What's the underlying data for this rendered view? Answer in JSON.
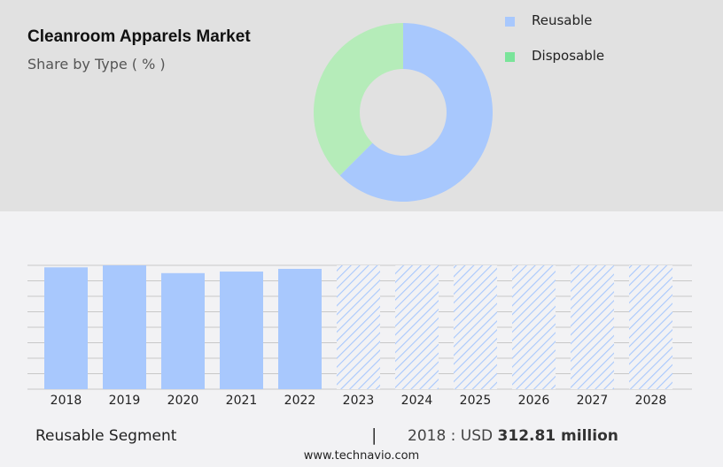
{
  "header": {
    "title": "Cleanroom Apparels Market",
    "subtitle": "Share by Type ( % )"
  },
  "colors": {
    "top_panel_bg": "#e1e1e1",
    "page_bg": "#f2f2f4",
    "reusable": "#a8c8fd",
    "disposable_slice": "#b5ecb9",
    "disposable_legend": "#7ae49a",
    "gridline": "#c8c8c8"
  },
  "legend": [
    {
      "label": "Reusable",
      "color": "#a8c8fd"
    },
    {
      "label": "Disposable",
      "color": "#7ae49a"
    }
  ],
  "footer": {
    "segment_label": "Reusable Segment",
    "separator": "|",
    "year_prefix": "2018 : USD ",
    "value": "312.81 million",
    "url": "www.technavio.com"
  },
  "chart_data": [
    {
      "type": "pie",
      "variant": "donut",
      "title": "Cleanroom Apparels Market",
      "subtitle": "Share by Type ( % )",
      "categories": [
        "Reusable",
        "Disposable"
      ],
      "values": [
        62.5,
        37.5
      ],
      "colors": [
        "#a8c8fd",
        "#b5ecb9"
      ],
      "legend_position": "right"
    },
    {
      "type": "bar",
      "title": "Reusable Segment",
      "categories": [
        "2018",
        "2019",
        "2020",
        "2021",
        "2022",
        "2023",
        "2024",
        "2025",
        "2026",
        "2027",
        "2028"
      ],
      "values": [
        312.81,
        318,
        298,
        302,
        309,
        null,
        null,
        null,
        null,
        null,
        null
      ],
      "forecast": [
        false,
        false,
        false,
        false,
        false,
        true,
        true,
        true,
        true,
        true,
        true
      ],
      "forecast_display_height": 318,
      "annotation": "2018 : USD 312.81 million",
      "xlabel": "",
      "ylabel": "",
      "ylim": [
        0,
        318
      ],
      "grid": true,
      "gridlines": 9,
      "y_tick_labels": false
    }
  ]
}
